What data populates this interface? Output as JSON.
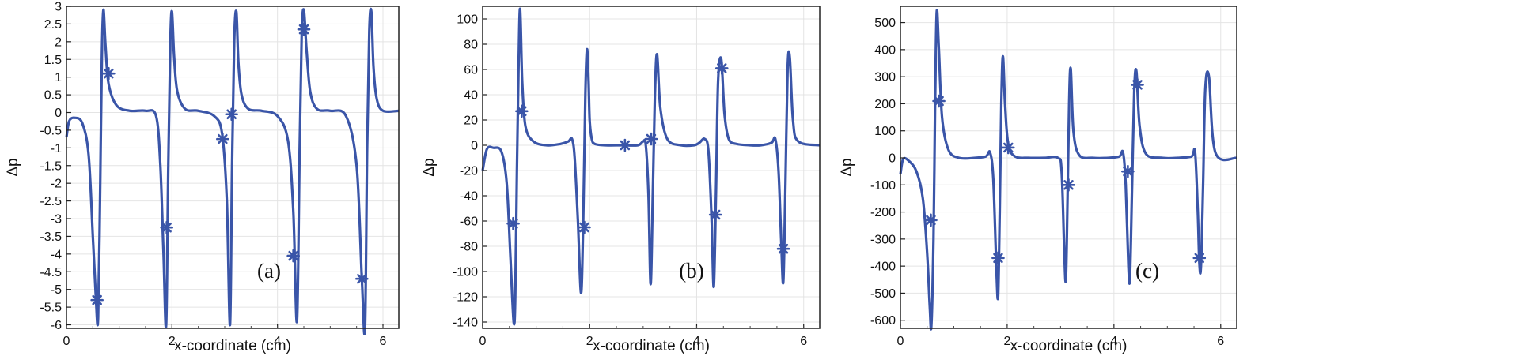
{
  "colors": {
    "line": "#3a55a8",
    "grid": "#e4e4e4",
    "text": "#111111"
  },
  "chart_data": [
    {
      "type": "line",
      "panel_label": "(a)",
      "xlabel": "x-coordinate (cm)",
      "ylabel": "Δp",
      "xlim": [
        0,
        6.3
      ],
      "ylim": [
        -6.1,
        3.0
      ],
      "x_ticks": [
        0,
        2,
        4,
        6
      ],
      "y_ticks": [
        3,
        2.5,
        2,
        1.5,
        1,
        0.5,
        0,
        -0.5,
        -1,
        -1.5,
        -2,
        -2.5,
        -3,
        -3.5,
        -4,
        -4.5,
        -5,
        -5.5,
        -6
      ],
      "grid": true,
      "series": [
        {
          "x": [
            0,
            0.05,
            0.15,
            0.3,
            0.42,
            0.5,
            0.56,
            0.6,
            0.64,
            0.67,
            0.7,
            0.74,
            0.8,
            0.95,
            1.2,
            1.5,
            1.7,
            1.78,
            1.84,
            1.89,
            1.93,
            1.97,
            2.0,
            2.04,
            2.1,
            2.25,
            2.5,
            2.8,
            2.95,
            3.04,
            3.1,
            3.14,
            3.18,
            3.22,
            3.26,
            3.32,
            3.45,
            3.7,
            4.0,
            4.2,
            4.3,
            4.37,
            4.42,
            4.46,
            4.5,
            4.55,
            4.62,
            4.75,
            5.0,
            5.3,
            5.5,
            5.6,
            5.66,
            5.7,
            5.74,
            5.78,
            5.82,
            5.88,
            6.0,
            6.3
          ],
          "values": [
            -0.7,
            -0.25,
            -0.15,
            -0.3,
            -1.2,
            -3.5,
            -5.3,
            -5.8,
            -2.0,
            1.5,
            2.9,
            1.9,
            0.8,
            0.2,
            0.05,
            0.05,
            -0.1,
            -1.5,
            -4.0,
            -6.0,
            -1.5,
            2.0,
            2.85,
            1.6,
            0.6,
            0.1,
            0.05,
            -0.1,
            -0.6,
            -2.5,
            -6.0,
            -1.5,
            2.0,
            2.85,
            1.4,
            0.5,
            0.1,
            0.05,
            -0.1,
            -0.8,
            -2.8,
            -5.9,
            -1.0,
            2.2,
            2.9,
            1.8,
            0.6,
            0.1,
            0.05,
            -0.1,
            -1.5,
            -4.7,
            -6.1,
            -1.0,
            2.3,
            2.85,
            1.3,
            0.4,
            0.05,
            0.05
          ]
        }
      ],
      "markers": [
        [
          0.58,
          -5.3
        ],
        [
          0.8,
          1.1
        ],
        [
          1.9,
          -3.25
        ],
        [
          2.96,
          -0.75
        ],
        [
          3.13,
          -0.05
        ],
        [
          4.3,
          -4.05
        ],
        [
          4.5,
          2.35
        ],
        [
          5.6,
          -4.7
        ]
      ]
    },
    {
      "type": "line",
      "panel_label": "(b)",
      "xlabel": "x-coordinate (cm)",
      "ylabel": "Δp",
      "xlim": [
        0,
        6.3
      ],
      "ylim": [
        -145,
        110
      ],
      "x_ticks": [
        0,
        2,
        4,
        6
      ],
      "y_ticks": [
        100,
        80,
        60,
        40,
        20,
        0,
        -20,
        -40,
        -60,
        -80,
        -100,
        -120,
        -140
      ],
      "grid": true,
      "series": [
        {
          "x": [
            0,
            0.08,
            0.2,
            0.35,
            0.45,
            0.52,
            0.58,
            0.61,
            0.64,
            0.67,
            0.7,
            0.74,
            0.8,
            0.95,
            1.2,
            1.45,
            1.6,
            1.67,
            1.72,
            1.78,
            1.84,
            1.88,
            1.92,
            1.95,
            1.98,
            2.0,
            2.04,
            2.1,
            2.3,
            2.6,
            2.9,
            3.0,
            3.05,
            3.1,
            3.14,
            3.18,
            3.22,
            3.26,
            3.32,
            3.45,
            3.7,
            3.95,
            4.05,
            4.15,
            4.22,
            4.28,
            4.32,
            4.36,
            4.4,
            4.46,
            4.52,
            4.6,
            4.75,
            5.0,
            5.2,
            5.4,
            5.47,
            5.53,
            5.58,
            5.62,
            5.66,
            5.7,
            5.74,
            5.8,
            5.9,
            6.3
          ],
          "values": [
            -20,
            -3,
            -2,
            -5,
            -30,
            -90,
            -140,
            -120,
            -20,
            60,
            108,
            50,
            15,
            3,
            0,
            1,
            3,
            5,
            -10,
            -60,
            -117,
            -60,
            40,
            76,
            50,
            20,
            5,
            1,
            0,
            0,
            0,
            3,
            0,
            -40,
            -110,
            -40,
            40,
            72,
            30,
            5,
            0,
            0,
            2,
            5,
            -5,
            -60,
            -112,
            -40,
            50,
            68,
            25,
            5,
            1,
            0,
            0,
            2,
            5,
            -20,
            -75,
            -108,
            -30,
            60,
            70,
            20,
            3,
            0
          ]
        }
      ],
      "markers": [
        [
          0.57,
          -62
        ],
        [
          0.73,
          27
        ],
        [
          1.9,
          -65
        ],
        [
          2.66,
          0
        ],
        [
          3.15,
          5
        ],
        [
          4.35,
          -55
        ],
        [
          4.47,
          61
        ],
        [
          5.62,
          -82
        ]
      ]
    },
    {
      "type": "line",
      "panel_label": "(c)",
      "xlabel": "x-coordinate (cm)",
      "ylabel": "Δp",
      "xlim": [
        0,
        6.3
      ],
      "ylim": [
        -630,
        560
      ],
      "x_ticks": [
        0,
        2,
        4,
        6
      ],
      "y_ticks": [
        500,
        400,
        300,
        200,
        100,
        0,
        -100,
        -200,
        -300,
        -400,
        -500,
        -600
      ],
      "grid": true,
      "series": [
        {
          "x": [
            0,
            0.05,
            0.15,
            0.3,
            0.42,
            0.5,
            0.55,
            0.58,
            0.62,
            0.65,
            0.68,
            0.72,
            0.78,
            0.9,
            1.1,
            1.4,
            1.6,
            1.68,
            1.74,
            1.8,
            1.83,
            1.86,
            1.89,
            1.92,
            1.96,
            2.02,
            2.15,
            2.4,
            2.7,
            2.95,
            3.02,
            3.07,
            3.1,
            3.13,
            3.16,
            3.19,
            3.24,
            3.35,
            3.6,
            3.9,
            4.1,
            4.17,
            4.22,
            4.27,
            4.3,
            4.34,
            4.38,
            4.42,
            4.48,
            4.6,
            4.9,
            5.2,
            5.45,
            5.52,
            5.57,
            5.6,
            5.63,
            5.67,
            5.71,
            5.78,
            5.9,
            6.3
          ],
          "values": [
            -60,
            -5,
            -10,
            -50,
            -150,
            -350,
            -550,
            -620,
            -300,
            200,
            540,
            400,
            150,
            30,
            0,
            0,
            5,
            20,
            -80,
            -420,
            -510,
            -200,
            200,
            375,
            200,
            50,
            5,
            0,
            0,
            0,
            -50,
            -350,
            -450,
            -150,
            200,
            330,
            100,
            10,
            0,
            0,
            5,
            20,
            -100,
            -400,
            -440,
            -100,
            250,
            320,
            120,
            15,
            0,
            0,
            5,
            20,
            -200,
            -390,
            -400,
            -100,
            250,
            300,
            20,
            0
          ]
        }
      ],
      "markers": [
        [
          0.57,
          -230
        ],
        [
          0.72,
          210
        ],
        [
          1.83,
          -370
        ],
        [
          2.02,
          38
        ],
        [
          3.15,
          -100
        ],
        [
          4.26,
          -50
        ],
        [
          4.44,
          270
        ],
        [
          5.6,
          -370
        ]
      ]
    }
  ]
}
